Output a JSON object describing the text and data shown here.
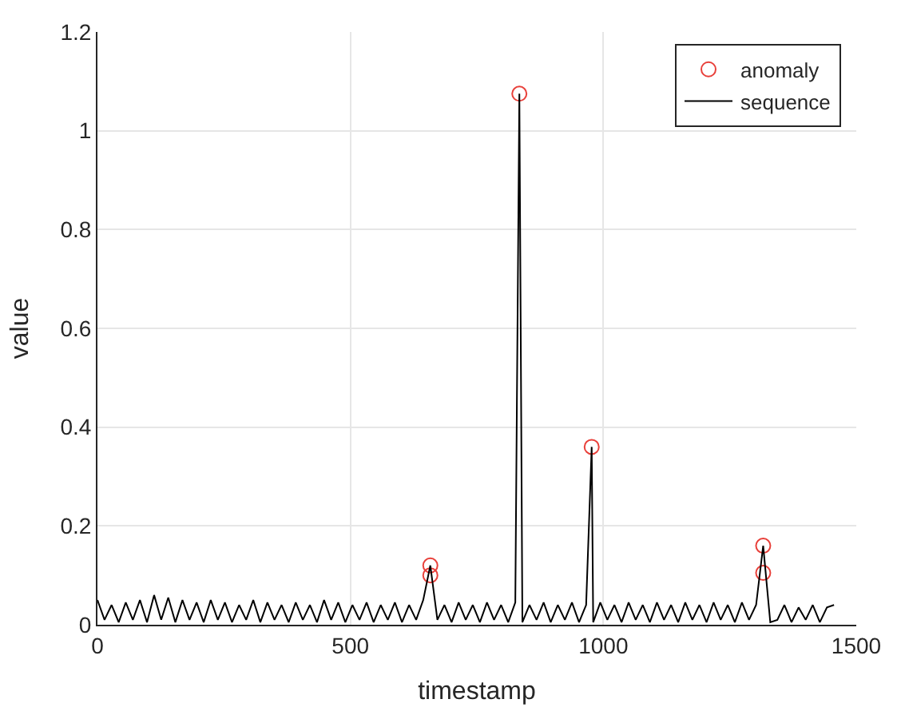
{
  "chart_data": {
    "type": "line",
    "xlabel": "timestamp",
    "ylabel": "value",
    "xlim": [
      0,
      1500
    ],
    "xticks": [
      0,
      500,
      1000,
      1500
    ],
    "ylim": [
      0,
      1.2
    ],
    "yticks": [
      0,
      0.2,
      0.4,
      0.6,
      0.8,
      1,
      1.2
    ],
    "grid": true,
    "legend": "top right",
    "series": [
      {
        "name": "anomaly",
        "type": "scatter",
        "marker": "circle",
        "color": "#e8403a",
        "x": [
          658,
          658,
          834,
          977,
          1316,
          1316
        ],
        "values": [
          0.1,
          0.12,
          1.075,
          0.36,
          0.105,
          0.16
        ]
      },
      {
        "name": "sequence",
        "marker": "none",
        "color": "#000000",
        "x": [
          0,
          14,
          28,
          42,
          56,
          70,
          84,
          98,
          112,
          126,
          140,
          154,
          168,
          182,
          196,
          210,
          224,
          238,
          252,
          266,
          280,
          294,
          308,
          322,
          336,
          350,
          364,
          378,
          392,
          406,
          420,
          434,
          448,
          462,
          476,
          490,
          504,
          518,
          532,
          546,
          560,
          574,
          588,
          602,
          616,
          630,
          644,
          658,
          672,
          686,
          700,
          714,
          728,
          742,
          756,
          770,
          784,
          798,
          812,
          826,
          834,
          840,
          854,
          868,
          882,
          896,
          910,
          924,
          938,
          952,
          966,
          977,
          980,
          994,
          1008,
          1022,
          1036,
          1050,
          1064,
          1078,
          1092,
          1106,
          1120,
          1134,
          1148,
          1162,
          1176,
          1190,
          1204,
          1218,
          1232,
          1246,
          1260,
          1274,
          1288,
          1302,
          1316,
          1330,
          1344,
          1358,
          1372,
          1386,
          1400,
          1414,
          1428,
          1442,
          1456
        ],
        "values": [
          0.05,
          0.01,
          0.04,
          0.005,
          0.045,
          0.01,
          0.05,
          0.005,
          0.06,
          0.01,
          0.055,
          0.005,
          0.05,
          0.01,
          0.045,
          0.005,
          0.05,
          0.01,
          0.045,
          0.005,
          0.04,
          0.01,
          0.05,
          0.005,
          0.045,
          0.01,
          0.04,
          0.005,
          0.045,
          0.01,
          0.04,
          0.005,
          0.05,
          0.01,
          0.045,
          0.005,
          0.04,
          0.01,
          0.045,
          0.005,
          0.04,
          0.01,
          0.045,
          0.005,
          0.04,
          0.01,
          0.05,
          0.12,
          0.01,
          0.04,
          0.005,
          0.045,
          0.01,
          0.04,
          0.005,
          0.045,
          0.01,
          0.04,
          0.005,
          0.045,
          1.075,
          0.005,
          0.04,
          0.01,
          0.045,
          0.005,
          0.04,
          0.01,
          0.045,
          0.005,
          0.04,
          0.36,
          0.005,
          0.045,
          0.01,
          0.04,
          0.005,
          0.045,
          0.01,
          0.04,
          0.005,
          0.045,
          0.01,
          0.04,
          0.005,
          0.045,
          0.01,
          0.04,
          0.005,
          0.045,
          0.01,
          0.04,
          0.005,
          0.045,
          0.01,
          0.04,
          0.16,
          0.005,
          0.01,
          0.04,
          0.005,
          0.035,
          0.01,
          0.04,
          0.005,
          0.035,
          0.04
        ]
      }
    ]
  }
}
